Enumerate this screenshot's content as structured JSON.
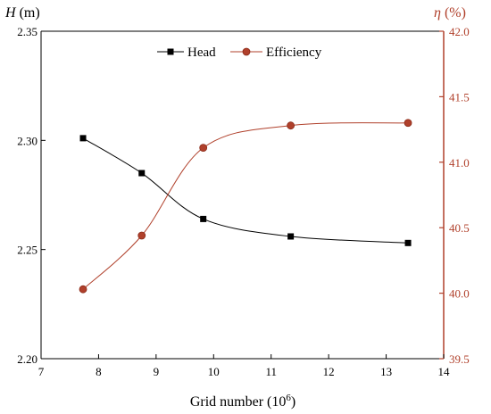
{
  "chart_data": {
    "type": "line",
    "title": "",
    "xlabel": "Grid number",
    "xlabel_exp": "6",
    "xlim": [
      7,
      14
    ],
    "xticks": [
      7,
      8,
      9,
      10,
      11,
      12,
      13,
      14
    ],
    "y_left": {
      "label_symbol": "H",
      "label_unit": " (m)",
      "ylim": [
        2.2,
        2.35
      ],
      "ticks": [
        "2.20",
        "2.25",
        "2.30",
        "2.35"
      ]
    },
    "y_right": {
      "label_symbol": "η",
      "label_unit": " (%)",
      "ylim": [
        39.5,
        42.0
      ],
      "ticks": [
        "39.5",
        "40.0",
        "40.5",
        "41.0",
        "41.5",
        "42.0"
      ],
      "color": "#b0402b"
    },
    "grid": false,
    "legend_position": "top-center",
    "series": [
      {
        "name": "Head",
        "axis": "left",
        "color": "#000000",
        "marker": "square",
        "x": [
          7.73,
          8.75,
          9.82,
          11.34,
          13.38
        ],
        "y": [
          2.301,
          2.285,
          2.264,
          2.256,
          2.253
        ]
      },
      {
        "name": "Efficiency",
        "axis": "right",
        "color": "#b0402b",
        "marker": "circle",
        "x": [
          7.73,
          8.75,
          9.82,
          11.34,
          13.38
        ],
        "y": [
          40.03,
          40.44,
          41.11,
          41.28,
          41.3
        ]
      }
    ]
  }
}
